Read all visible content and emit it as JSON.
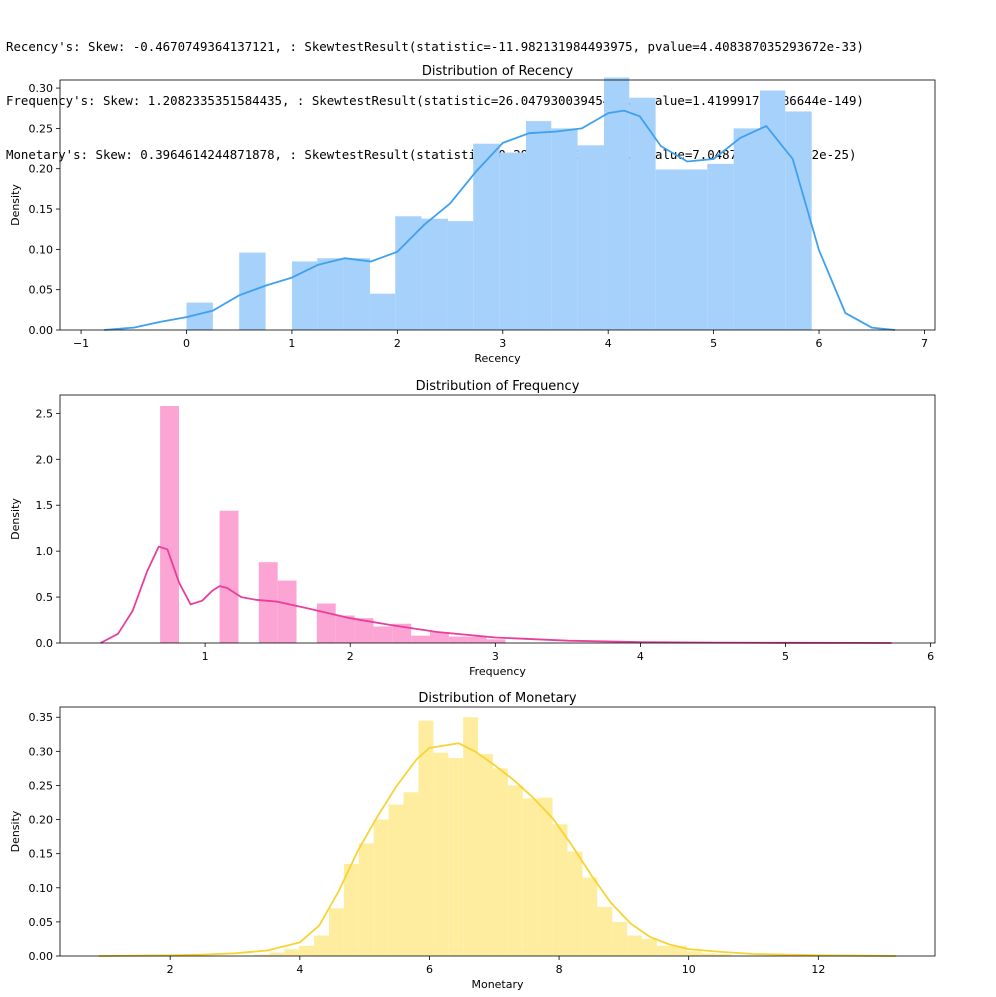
{
  "output_lines": [
    "Recency's: Skew: -0.4670749364137121, : SkewtestResult(statistic=-11.982131984493975, pvalue=4.408387035293672e-33)",
    "Frequency's: Skew: 1.2082335351584435, : SkewtestResult(statistic=26.04793003945421, pvalue=1.419991761586644e-149)",
    "Monetary's: Skew: 0.3964614244871878, : SkewtestResult(statistic=10.299963600725635, pvalue=7.048796791830502e-25)"
  ],
  "chart_data": [
    {
      "type": "bar",
      "title": "Distribution of Recency",
      "xlabel": "Recency",
      "ylabel": "Density",
      "xlim": [
        -1.2,
        7.1
      ],
      "ylim": [
        0,
        0.31
      ],
      "xticks": [
        -1,
        0,
        1,
        2,
        3,
        4,
        5,
        6,
        7
      ],
      "yticks": [
        0.0,
        0.05,
        0.1,
        0.15,
        0.2,
        0.25,
        0.3
      ],
      "ytick_decimals": 2,
      "color": "#a6d1fa",
      "kde_color": "#3fa0ee",
      "bins": [
        {
          "x0": 0.0,
          "x1": 0.25,
          "h": 0.034
        },
        {
          "x0": 0.25,
          "x1": 0.5,
          "h": 0.0
        },
        {
          "x0": 0.5,
          "x1": 0.75,
          "h": 0.096
        },
        {
          "x0": 0.75,
          "x1": 1.0,
          "h": 0.0
        },
        {
          "x0": 1.0,
          "x1": 1.24,
          "h": 0.085
        },
        {
          "x0": 1.24,
          "x1": 1.49,
          "h": 0.089
        },
        {
          "x0": 1.49,
          "x1": 1.74,
          "h": 0.089
        },
        {
          "x0": 1.74,
          "x1": 1.98,
          "h": 0.045
        },
        {
          "x0": 1.98,
          "x1": 2.23,
          "h": 0.141
        },
        {
          "x0": 2.23,
          "x1": 2.48,
          "h": 0.138
        },
        {
          "x0": 2.48,
          "x1": 2.72,
          "h": 0.135
        },
        {
          "x0": 2.72,
          "x1": 2.97,
          "h": 0.231
        },
        {
          "x0": 2.97,
          "x1": 3.22,
          "h": 0.22
        },
        {
          "x0": 3.22,
          "x1": 3.46,
          "h": 0.259
        },
        {
          "x0": 3.46,
          "x1": 3.71,
          "h": 0.25
        },
        {
          "x0": 3.71,
          "x1": 3.96,
          "h": 0.229
        },
        {
          "x0": 3.96,
          "x1": 4.2,
          "h": 0.313
        },
        {
          "x0": 4.2,
          "x1": 4.45,
          "h": 0.288
        },
        {
          "x0": 4.45,
          "x1": 4.7,
          "h": 0.199
        },
        {
          "x0": 4.7,
          "x1": 4.94,
          "h": 0.199
        },
        {
          "x0": 4.94,
          "x1": 5.19,
          "h": 0.206
        },
        {
          "x0": 5.19,
          "x1": 5.44,
          "h": 0.25
        },
        {
          "x0": 5.44,
          "x1": 5.68,
          "h": 0.297
        },
        {
          "x0": 5.68,
          "x1": 5.93,
          "h": 0.271
        }
      ],
      "kde": {
        "x": [
          -0.78,
          -0.5,
          -0.25,
          0.0,
          0.25,
          0.5,
          0.75,
          1.0,
          1.25,
          1.5,
          1.75,
          2.0,
          2.25,
          2.5,
          2.75,
          3.0,
          3.25,
          3.5,
          3.75,
          4.0,
          4.15,
          4.3,
          4.5,
          4.75,
          5.0,
          5.25,
          5.5,
          5.75,
          6.0,
          6.25,
          6.5,
          6.72
        ],
        "y": [
          0.0,
          0.003,
          0.01,
          0.016,
          0.024,
          0.043,
          0.055,
          0.065,
          0.081,
          0.089,
          0.085,
          0.097,
          0.13,
          0.157,
          0.197,
          0.232,
          0.244,
          0.246,
          0.25,
          0.269,
          0.272,
          0.265,
          0.228,
          0.209,
          0.212,
          0.238,
          0.253,
          0.212,
          0.099,
          0.021,
          0.003,
          0.0
        ]
      }
    },
    {
      "type": "bar",
      "title": "Distribution of Frequency",
      "xlabel": "Frequency",
      "ylabel": "Density",
      "xlim": [
        0.0,
        6.03
      ],
      "ylim": [
        0,
        2.7
      ],
      "xticks": [
        1,
        2,
        3,
        4,
        5,
        6
      ],
      "yticks": [
        0.0,
        0.5,
        1.0,
        1.5,
        2.0,
        2.5
      ],
      "ytick_decimals": 1,
      "color": "#fca5d4",
      "kde_color": "#ea3e9c",
      "bins": [
        {
          "x0": 0.69,
          "x1": 0.82,
          "h": 2.58
        },
        {
          "x0": 1.1,
          "x1": 1.23,
          "h": 1.44
        },
        {
          "x0": 1.37,
          "x1": 1.5,
          "h": 0.88
        },
        {
          "x0": 1.5,
          "x1": 1.63,
          "h": 0.68
        },
        {
          "x0": 1.77,
          "x1": 1.9,
          "h": 0.43
        },
        {
          "x0": 1.9,
          "x1": 2.03,
          "h": 0.3
        },
        {
          "x0": 2.03,
          "x1": 2.16,
          "h": 0.27
        },
        {
          "x0": 2.16,
          "x1": 2.29,
          "h": 0.18
        },
        {
          "x0": 2.29,
          "x1": 2.42,
          "h": 0.21
        },
        {
          "x0": 2.42,
          "x1": 2.55,
          "h": 0.08
        },
        {
          "x0": 2.55,
          "x1": 2.68,
          "h": 0.12
        },
        {
          "x0": 2.68,
          "x1": 2.81,
          "h": 0.07
        },
        {
          "x0": 2.81,
          "x1": 2.94,
          "h": 0.07
        },
        {
          "x0": 2.94,
          "x1": 3.07,
          "h": 0.04
        }
      ],
      "kde": {
        "x": [
          0.28,
          0.4,
          0.5,
          0.6,
          0.68,
          0.74,
          0.82,
          0.9,
          0.98,
          1.05,
          1.1,
          1.15,
          1.25,
          1.35,
          1.5,
          1.7,
          2.0,
          2.3,
          2.6,
          3.0,
          3.5,
          4.0,
          4.5,
          5.0,
          5.5,
          5.73
        ],
        "y": [
          0.0,
          0.1,
          0.35,
          0.78,
          1.05,
          1.02,
          0.66,
          0.42,
          0.46,
          0.57,
          0.62,
          0.6,
          0.5,
          0.47,
          0.45,
          0.38,
          0.27,
          0.19,
          0.12,
          0.06,
          0.025,
          0.01,
          0.004,
          0.002,
          0.001,
          0.0
        ]
      }
    },
    {
      "type": "bar",
      "title": "Distribution of Monetary",
      "xlabel": "Monetary",
      "ylabel": "Density",
      "xlim": [
        0.3,
        13.8
      ],
      "ylim": [
        0,
        0.365
      ],
      "xticks": [
        2,
        4,
        6,
        8,
        10,
        12
      ],
      "yticks": [
        0.0,
        0.05,
        0.1,
        0.15,
        0.2,
        0.25,
        0.3,
        0.35
      ],
      "ytick_decimals": 2,
      "color": "#feed9f",
      "kde_color": "#f7d434",
      "bins": [
        {
          "x0": 3.3,
          "x1": 3.53,
          "h": 0.002
        },
        {
          "x0": 3.53,
          "x1": 3.76,
          "h": 0.005
        },
        {
          "x0": 3.76,
          "x1": 3.99,
          "h": 0.01
        },
        {
          "x0": 3.99,
          "x1": 4.22,
          "h": 0.015
        },
        {
          "x0": 4.22,
          "x1": 4.45,
          "h": 0.03
        },
        {
          "x0": 4.45,
          "x1": 4.68,
          "h": 0.07
        },
        {
          "x0": 4.68,
          "x1": 4.91,
          "h": 0.135
        },
        {
          "x0": 4.91,
          "x1": 5.14,
          "h": 0.165
        },
        {
          "x0": 5.14,
          "x1": 5.37,
          "h": 0.2
        },
        {
          "x0": 5.37,
          "x1": 5.6,
          "h": 0.222
        },
        {
          "x0": 5.6,
          "x1": 5.83,
          "h": 0.24
        },
        {
          "x0": 5.83,
          "x1": 6.06,
          "h": 0.345
        },
        {
          "x0": 6.06,
          "x1": 6.29,
          "h": 0.298
        },
        {
          "x0": 6.29,
          "x1": 6.52,
          "h": 0.29
        },
        {
          "x0": 6.52,
          "x1": 6.75,
          "h": 0.35
        },
        {
          "x0": 6.75,
          "x1": 6.98,
          "h": 0.296
        },
        {
          "x0": 6.98,
          "x1": 7.21,
          "h": 0.275
        },
        {
          "x0": 7.21,
          "x1": 7.44,
          "h": 0.25
        },
        {
          "x0": 7.44,
          "x1": 7.67,
          "h": 0.231
        },
        {
          "x0": 7.67,
          "x1": 7.9,
          "h": 0.232
        },
        {
          "x0": 7.9,
          "x1": 8.13,
          "h": 0.193
        },
        {
          "x0": 8.13,
          "x1": 8.36,
          "h": 0.153
        },
        {
          "x0": 8.36,
          "x1": 8.59,
          "h": 0.115
        },
        {
          "x0": 8.59,
          "x1": 8.82,
          "h": 0.072
        },
        {
          "x0": 8.82,
          "x1": 9.05,
          "h": 0.05
        },
        {
          "x0": 9.05,
          "x1": 9.28,
          "h": 0.03
        },
        {
          "x0": 9.28,
          "x1": 9.51,
          "h": 0.025
        },
        {
          "x0": 9.51,
          "x1": 9.74,
          "h": 0.015
        },
        {
          "x0": 9.74,
          "x1": 9.97,
          "h": 0.015
        },
        {
          "x0": 9.97,
          "x1": 10.2,
          "h": 0.007
        },
        {
          "x0": 10.2,
          "x1": 10.43,
          "h": 0.004
        },
        {
          "x0": 10.43,
          "x1": 10.66,
          "h": 0.003
        }
      ],
      "kde": {
        "x": [
          0.9,
          2.0,
          2.5,
          3.0,
          3.5,
          4.0,
          4.3,
          4.6,
          4.9,
          5.2,
          5.5,
          5.8,
          6.0,
          6.2,
          6.45,
          6.7,
          7.0,
          7.3,
          7.6,
          7.9,
          8.2,
          8.5,
          8.8,
          9.1,
          9.4,
          9.7,
          10.0,
          10.5,
          11.0,
          12.0,
          13.2
        ],
        "y": [
          0.0,
          0.001,
          0.002,
          0.004,
          0.008,
          0.02,
          0.045,
          0.095,
          0.155,
          0.205,
          0.25,
          0.288,
          0.305,
          0.308,
          0.312,
          0.3,
          0.28,
          0.258,
          0.232,
          0.202,
          0.162,
          0.118,
          0.078,
          0.048,
          0.028,
          0.017,
          0.01,
          0.006,
          0.003,
          0.001,
          0.0
        ]
      }
    }
  ]
}
